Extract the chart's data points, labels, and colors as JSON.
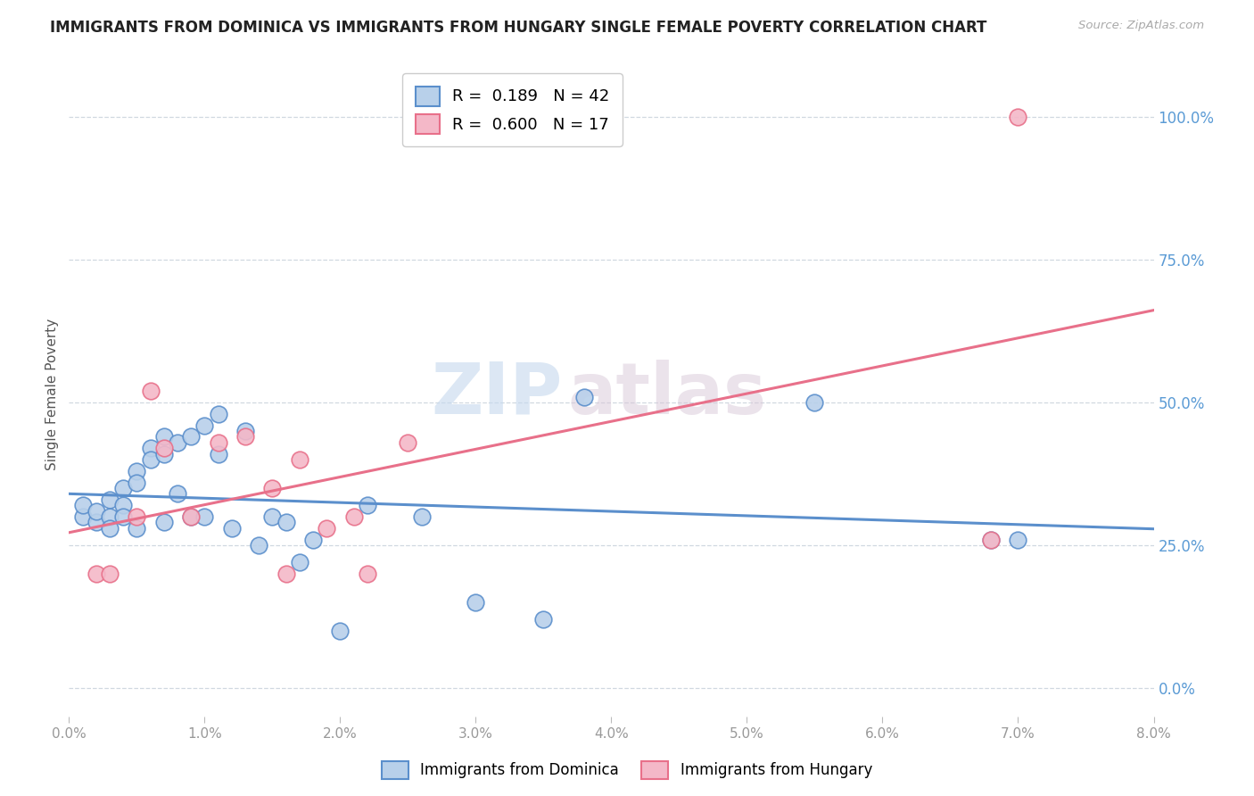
{
  "title": "IMMIGRANTS FROM DOMINICA VS IMMIGRANTS FROM HUNGARY SINGLE FEMALE POVERTY CORRELATION CHART",
  "source": "Source: ZipAtlas.com",
  "ylabel": "Single Female Poverty",
  "right_yticks": [
    0.0,
    0.25,
    0.5,
    0.75,
    1.0
  ],
  "right_yticklabels": [
    "0.0%",
    "25.0%",
    "50.0%",
    "75.0%",
    "100.0%"
  ],
  "dominica_label": "Immigrants from Dominica",
  "hungary_label": "Immigrants from Hungary",
  "dominica_R": "0.189",
  "dominica_N": "42",
  "hungary_R": "0.600",
  "hungary_N": "17",
  "dominica_color": "#b8d0ea",
  "hungary_color": "#f4b8c8",
  "dominica_line_color": "#5b8fcc",
  "hungary_line_color": "#e8708a",
  "watermark_zip": "ZIP",
  "watermark_atlas": "atlas",
  "dominica_x": [
    0.001,
    0.001,
    0.002,
    0.002,
    0.003,
    0.003,
    0.003,
    0.004,
    0.004,
    0.004,
    0.005,
    0.005,
    0.005,
    0.006,
    0.006,
    0.007,
    0.007,
    0.007,
    0.008,
    0.008,
    0.009,
    0.009,
    0.01,
    0.01,
    0.011,
    0.011,
    0.012,
    0.013,
    0.014,
    0.015,
    0.016,
    0.017,
    0.018,
    0.02,
    0.022,
    0.026,
    0.03,
    0.035,
    0.038,
    0.055,
    0.068,
    0.07
  ],
  "dominica_y": [
    0.3,
    0.32,
    0.29,
    0.31,
    0.33,
    0.3,
    0.28,
    0.35,
    0.32,
    0.3,
    0.38,
    0.36,
    0.28,
    0.42,
    0.4,
    0.44,
    0.41,
    0.29,
    0.43,
    0.34,
    0.3,
    0.44,
    0.3,
    0.46,
    0.48,
    0.41,
    0.28,
    0.45,
    0.25,
    0.3,
    0.29,
    0.22,
    0.26,
    0.1,
    0.32,
    0.3,
    0.15,
    0.12,
    0.51,
    0.5,
    0.26,
    0.26
  ],
  "hungary_x": [
    0.002,
    0.003,
    0.005,
    0.006,
    0.007,
    0.009,
    0.011,
    0.013,
    0.015,
    0.016,
    0.017,
    0.019,
    0.021,
    0.022,
    0.025,
    0.068,
    0.07
  ],
  "hungary_y": [
    0.2,
    0.2,
    0.3,
    0.52,
    0.42,
    0.3,
    0.43,
    0.44,
    0.35,
    0.2,
    0.4,
    0.28,
    0.3,
    0.2,
    0.43,
    0.26,
    1.0
  ],
  "xlim": [
    0.0,
    0.08
  ],
  "ylim": [
    -0.05,
    1.08
  ],
  "xticks": [
    0.0,
    0.01,
    0.02,
    0.03,
    0.04,
    0.05,
    0.06,
    0.07,
    0.08
  ],
  "xticklabels": [
    "0.0%",
    "1.0%",
    "2.0%",
    "3.0%",
    "4.0%",
    "5.0%",
    "6.0%",
    "7.0%",
    "8.0%"
  ]
}
